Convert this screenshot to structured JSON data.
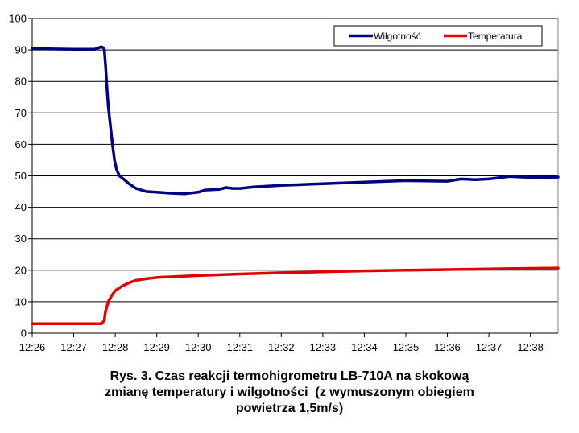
{
  "chart_data": {
    "type": "line",
    "title": "",
    "xlabel": "",
    "ylabel": "",
    "ylim": [
      0,
      100
    ],
    "yticks": [
      0,
      10,
      20,
      30,
      40,
      50,
      60,
      70,
      80,
      90,
      100
    ],
    "ytick_labels": [
      "0",
      "10",
      "20",
      "30",
      "40",
      "50",
      "60",
      "70",
      "80",
      "90",
      "100"
    ],
    "xlim": [
      "12:26",
      "12:38:40"
    ],
    "xtick_labels": [
      "12:26",
      "12:27",
      "12:28",
      "12:29",
      "12:30",
      "12:31",
      "12:32",
      "12:33",
      "12:34",
      "12:35",
      "12:36",
      "12:37",
      "12:38"
    ],
    "grid": "horizontal",
    "legend_position": "top-right",
    "series": [
      {
        "name": "Wilgotność",
        "color": "#000080",
        "points": [
          [
            "12:26",
            90.5
          ],
          [
            "12:26:30",
            90.3
          ],
          [
            "12:27",
            90.2
          ],
          [
            "12:27:30",
            90.2
          ],
          [
            "12:27:40",
            91.0
          ],
          [
            "12:27:44",
            90.5
          ],
          [
            "12:27:46",
            85.0
          ],
          [
            "12:27:48",
            78.0
          ],
          [
            "12:27:50",
            72.0
          ],
          [
            "12:27:53",
            66.0
          ],
          [
            "12:27:56",
            60.0
          ],
          [
            "12:27:59",
            55.0
          ],
          [
            "12:28:02",
            52.0
          ],
          [
            "12:28:06",
            50.0
          ],
          [
            "12:28:12",
            49.0
          ],
          [
            "12:28:20",
            47.5
          ],
          [
            "12:28:30",
            46.0
          ],
          [
            "12:28:45",
            45.0
          ],
          [
            "12:29",
            44.8
          ],
          [
            "12:29:20",
            44.5
          ],
          [
            "12:29:40",
            44.3
          ],
          [
            "12:30",
            44.8
          ],
          [
            "12:30:10",
            45.5
          ],
          [
            "12:30:30",
            45.7
          ],
          [
            "12:30:40",
            46.3
          ],
          [
            "12:30:50",
            46.0
          ],
          [
            "12:31",
            46.0
          ],
          [
            "12:31:20",
            46.5
          ],
          [
            "12:32",
            47.0
          ],
          [
            "12:33",
            47.5
          ],
          [
            "12:34",
            48.0
          ],
          [
            "12:35",
            48.5
          ],
          [
            "12:36",
            48.3
          ],
          [
            "12:36:20",
            49.0
          ],
          [
            "12:36:40",
            48.8
          ],
          [
            "12:37",
            49.0
          ],
          [
            "12:37:30",
            49.8
          ],
          [
            "12:38",
            49.5
          ],
          [
            "12:38:40",
            49.6
          ]
        ]
      },
      {
        "name": "Temperatura",
        "color": "#e00000",
        "points": [
          [
            "12:26",
            3.0
          ],
          [
            "12:27",
            3.0
          ],
          [
            "12:27:40",
            3.0
          ],
          [
            "12:27:44",
            4.0
          ],
          [
            "12:27:46",
            7.0
          ],
          [
            "12:27:50",
            10.0
          ],
          [
            "12:27:55",
            12.0
          ],
          [
            "12:28",
            13.5
          ],
          [
            "12:28:10",
            15.0
          ],
          [
            "12:28:20",
            16.0
          ],
          [
            "12:28:30",
            16.8
          ],
          [
            "12:28:45",
            17.3
          ],
          [
            "12:29",
            17.7
          ],
          [
            "12:29:30",
            18.0
          ],
          [
            "12:30",
            18.3
          ],
          [
            "12:31",
            18.8
          ],
          [
            "12:32",
            19.2
          ],
          [
            "12:33",
            19.5
          ],
          [
            "12:34",
            19.8
          ],
          [
            "12:35",
            20.0
          ],
          [
            "12:36",
            20.2
          ],
          [
            "12:37",
            20.4
          ],
          [
            "12:38",
            20.6
          ],
          [
            "12:38:40",
            20.7
          ]
        ]
      }
    ]
  },
  "caption": {
    "line1": "Rys. 3. Czas reakcji termohigrometru LB-710A na skokową",
    "line2": "zmianę temperatury i wilgotności  (z wymuszonym obiegiem",
    "line3": "powietrza 1,5m/s)"
  }
}
